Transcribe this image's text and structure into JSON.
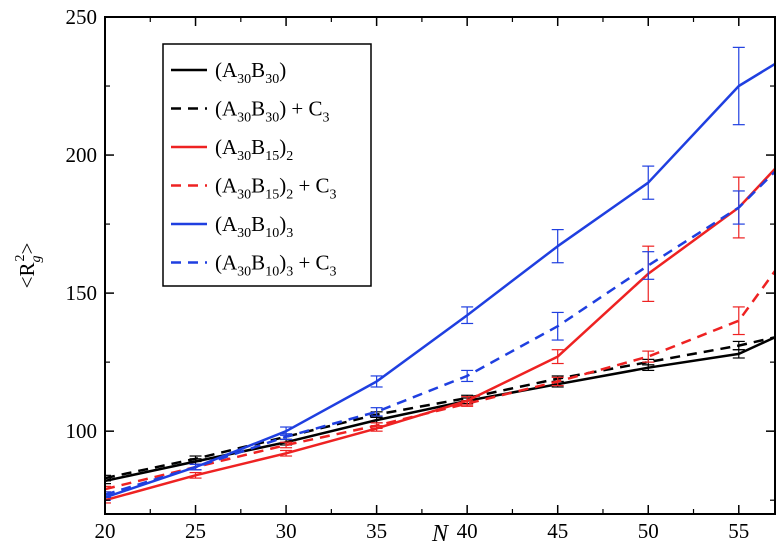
{
  "chart_data": {
    "type": "line",
    "xlabel": "N",
    "ylabel": {
      "main": "<R",
      "sub": "g",
      "sup": "2",
      "close": ">"
    },
    "xlim": [
      20,
      57
    ],
    "ylim": [
      70,
      250
    ],
    "xticks": [
      20,
      25,
      30,
      35,
      40,
      45,
      50,
      55
    ],
    "yticks": [
      100,
      150,
      200,
      250
    ],
    "grid": false,
    "legend_position": "top-left",
    "series": [
      {
        "key": "s1",
        "name": "(A30B30)",
        "label_parts": [
          {
            "t": "(A"
          },
          {
            "t": "30",
            "sub": true
          },
          {
            "t": "B"
          },
          {
            "t": "30",
            "sub": true
          },
          {
            "t": ")"
          }
        ],
        "color": "#000000",
        "dashed": false,
        "x": [
          20,
          25,
          30,
          35,
          40,
          45,
          50,
          55,
          57
        ],
        "y": [
          82,
          89,
          96,
          104,
          111,
          117,
          123,
          128,
          134
        ],
        "err": [
          1,
          1,
          1,
          1,
          1,
          1,
          1,
          1.5,
          null
        ]
      },
      {
        "key": "s2",
        "name": "(A30B30) + C3",
        "label_parts": [
          {
            "t": "(A"
          },
          {
            "t": "30",
            "sub": true
          },
          {
            "t": "B"
          },
          {
            "t": "30",
            "sub": true
          },
          {
            "t": ") + C"
          },
          {
            "t": "3",
            "sub": true
          }
        ],
        "color": "#000000",
        "dashed": true,
        "x": [
          20,
          25,
          30,
          35,
          40,
          45,
          50,
          55,
          57
        ],
        "y": [
          83,
          90,
          98,
          106,
          112,
          119,
          125,
          131,
          134
        ],
        "err": [
          1,
          1,
          1,
          1,
          1,
          1,
          1,
          1.5,
          null
        ]
      },
      {
        "key": "s3",
        "name": "(A30B15)2",
        "label_parts": [
          {
            "t": "(A"
          },
          {
            "t": "30",
            "sub": true
          },
          {
            "t": "B"
          },
          {
            "t": "15",
            "sub": true
          },
          {
            "t": ")"
          },
          {
            "t": "2",
            "sub": true
          }
        ],
        "color": "#ee2222",
        "dashed": false,
        "x": [
          20,
          25,
          30,
          35,
          40,
          45,
          50,
          55,
          57
        ],
        "y": [
          75,
          84,
          92,
          101,
          111,
          127,
          157,
          181,
          195
        ],
        "err": [
          1,
          1,
          1,
          1,
          1.5,
          2.5,
          10,
          11,
          null
        ]
      },
      {
        "key": "s4",
        "name": "(A30B15)2 + C3",
        "label_parts": [
          {
            "t": "(A"
          },
          {
            "t": "30",
            "sub": true
          },
          {
            "t": "B"
          },
          {
            "t": "15",
            "sub": true
          },
          {
            "t": ")"
          },
          {
            "t": "2",
            "sub": true
          },
          {
            "t": " + C"
          },
          {
            "t": "3",
            "sub": true
          }
        ],
        "color": "#ee2222",
        "dashed": true,
        "x": [
          20,
          25,
          30,
          35,
          40,
          45,
          50,
          55,
          57
        ],
        "y": [
          79,
          87,
          95,
          102,
          110,
          118,
          127,
          140,
          158
        ],
        "err": [
          1,
          1,
          1,
          1,
          1,
          1.5,
          2,
          5,
          null
        ]
      },
      {
        "key": "s5",
        "name": "(A30B10)3",
        "label_parts": [
          {
            "t": "(A"
          },
          {
            "t": "30",
            "sub": true
          },
          {
            "t": "B"
          },
          {
            "t": "10",
            "sub": true
          },
          {
            "t": ")"
          },
          {
            "t": "3",
            "sub": true
          }
        ],
        "color": "#1f3fe0",
        "dashed": false,
        "x": [
          20,
          25,
          30,
          35,
          40,
          45,
          50,
          55,
          57
        ],
        "y": [
          76,
          87,
          100,
          118,
          142,
          167,
          190,
          225,
          233
        ],
        "err": [
          1,
          1,
          1.5,
          2,
          3,
          6,
          6,
          14,
          null
        ]
      },
      {
        "key": "s6",
        "name": "(A30B10)3 + C3",
        "label_parts": [
          {
            "t": "(A"
          },
          {
            "t": "30",
            "sub": true
          },
          {
            "t": "B"
          },
          {
            "t": "10",
            "sub": true
          },
          {
            "t": ")"
          },
          {
            "t": "3",
            "sub": true
          },
          {
            "t": " + C"
          },
          {
            "t": "3",
            "sub": true
          }
        ],
        "color": "#1f3fe0",
        "dashed": true,
        "x": [
          20,
          25,
          30,
          35,
          40,
          45,
          50,
          55,
          57
        ],
        "y": [
          77,
          87,
          98,
          107,
          120,
          138,
          160,
          181,
          194
        ],
        "err": [
          1,
          1,
          1,
          1.5,
          2,
          5,
          5,
          6,
          null
        ]
      }
    ]
  }
}
